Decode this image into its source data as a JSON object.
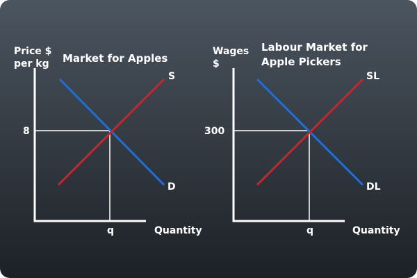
{
  "colors": {
    "background_top": "#4b5560",
    "background_bottom": "#1d2126",
    "axis": "#ffffff",
    "demand": "#1f6fd6",
    "supply": "#c8262c",
    "guide": "#ffffff"
  },
  "left_graph": {
    "title": "Market for Apples",
    "y_label_line1": "Price $",
    "y_label_line2": "per kg",
    "x_label": "Quantity",
    "equilibrium_price": "8",
    "equilibrium_quantity": "q",
    "supply_label": "S",
    "demand_label": "D"
  },
  "right_graph": {
    "title_line1": "Labour Market for",
    "title_line2": "Apple Pickers",
    "y_label_line1": "Wages",
    "y_label_line2": "$",
    "x_label": "Quantity",
    "equilibrium_wage": "300",
    "equilibrium_quantity": "q",
    "supply_label": "SL",
    "demand_label": "DL"
  }
}
